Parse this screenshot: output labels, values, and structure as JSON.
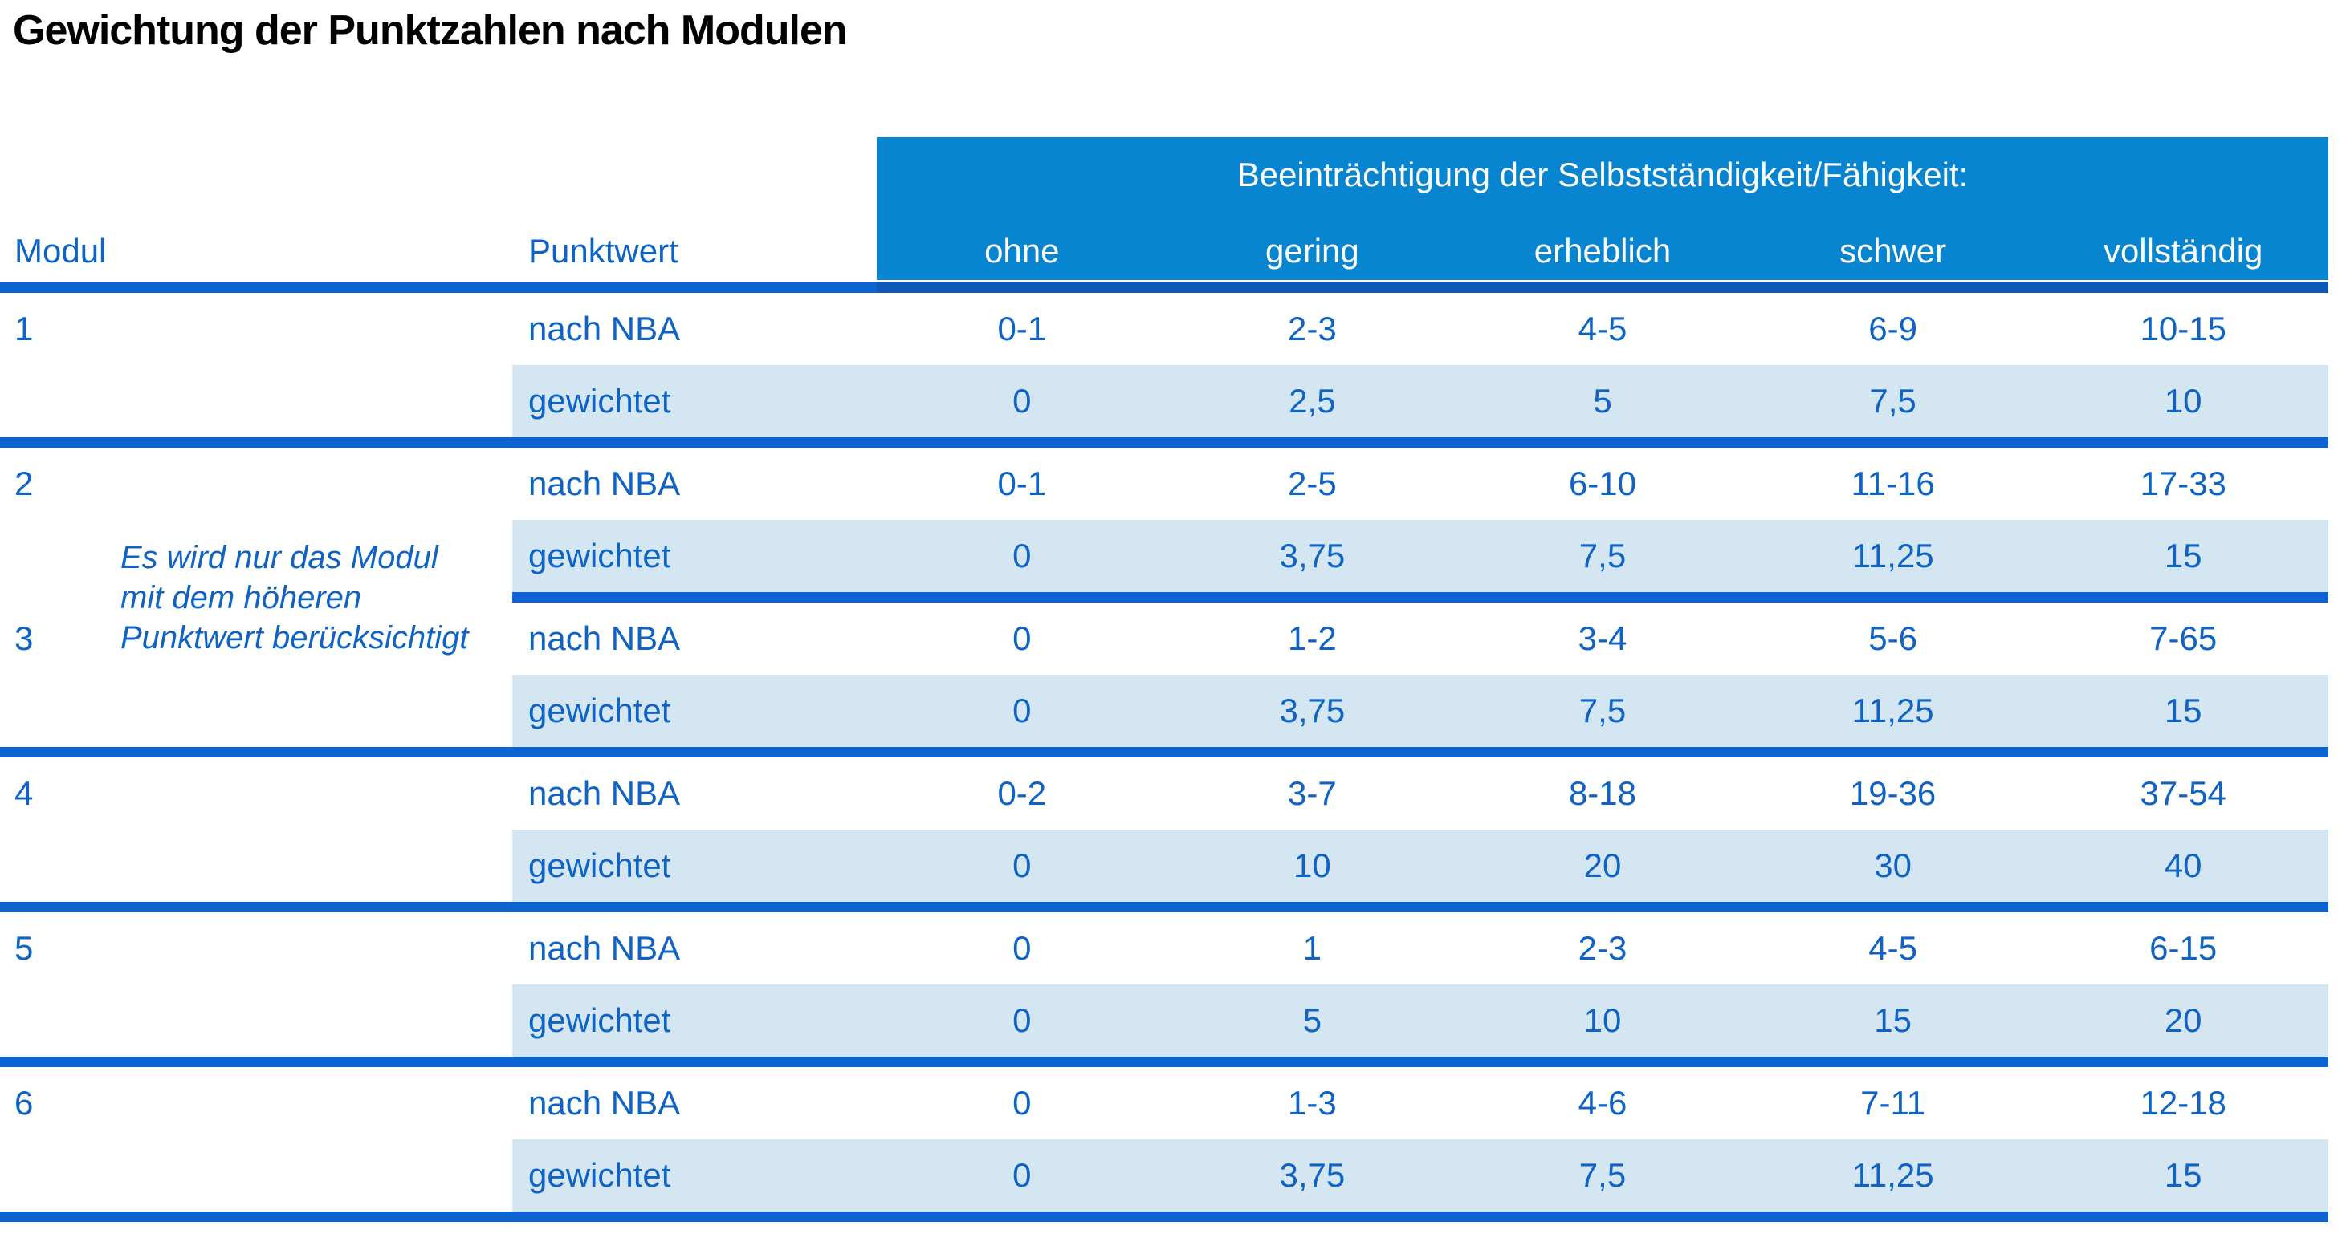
{
  "title": "Gewichtung der Punktzahlen nach Modulen",
  "colors": {
    "header-blue": "#0885d0",
    "row-highlight": "#d5e6f3",
    "rule-blue": "#0d63d2",
    "rule-blue-dark": "#0e58ba",
    "text-blue": "#0f63c5",
    "title-color": "#000000"
  },
  "table": {
    "impairment_header": "Beeinträchtigung der Selbstständigkeit/Fähigkeit:",
    "col_modul": "Modul",
    "col_punktwert": "Punktwert",
    "severity_levels": [
      "ohne",
      "gering",
      "erheblich",
      "schwer",
      "vollständig"
    ],
    "labels": {
      "nba": "nach NBA",
      "weighted": "gewichtet"
    },
    "note_lines": [
      "Es wird nur das Modul",
      "mit dem höheren",
      "Punktwert berücksichtigt"
    ],
    "modules": [
      {
        "id": "1",
        "nba": [
          "0-1",
          "2-3",
          "4-5",
          "6-9",
          "10-15"
        ],
        "weighted": [
          "0",
          "2,5",
          "5",
          "7,5",
          "10"
        ]
      },
      {
        "id": "2",
        "nba": [
          "0-1",
          "2-5",
          "6-10",
          "11-16",
          "17-33"
        ],
        "weighted": [
          "0",
          "3,75",
          "7,5",
          "11,25",
          "15"
        ]
      },
      {
        "id": "3",
        "nba": [
          "0",
          "1-2",
          "3-4",
          "5-6",
          "7-65"
        ],
        "weighted": [
          "0",
          "3,75",
          "7,5",
          "11,25",
          "15"
        ]
      },
      {
        "id": "4",
        "nba": [
          "0-2",
          "3-7",
          "8-18",
          "19-36",
          "37-54"
        ],
        "weighted": [
          "0",
          "10",
          "20",
          "30",
          "40"
        ]
      },
      {
        "id": "5",
        "nba": [
          "0",
          "1",
          "2-3",
          "4-5",
          "6-15"
        ],
        "weighted": [
          "0",
          "5",
          "10",
          "15",
          "20"
        ]
      },
      {
        "id": "6",
        "nba": [
          "0",
          "1-3",
          "4-6",
          "7-11",
          "12-18"
        ],
        "weighted": [
          "0",
          "3,75",
          "7,5",
          "11,25",
          "15"
        ]
      }
    ]
  }
}
